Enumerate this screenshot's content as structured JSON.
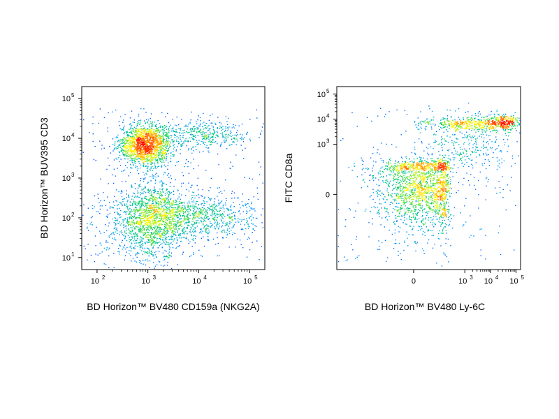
{
  "chart_data": [
    {
      "type": "scatter",
      "style": "flow cytometry pseudocolor density dot plot",
      "xlabel": "BD Horizon™ BV480 CD159a (NKG2A)",
      "ylabel": "BD Horizon™ BUV395 CD3",
      "xscale": "log",
      "yscale": "log",
      "xlim": [
        50,
        200000
      ],
      "ylim": [
        5,
        200000
      ],
      "xticks": [
        {
          "value": 100,
          "base": "10",
          "exp": "2"
        },
        {
          "value": 1000,
          "base": "10",
          "exp": "3"
        },
        {
          "value": 10000,
          "base": "10",
          "exp": "4"
        },
        {
          "value": 100000,
          "base": "10",
          "exp": "5"
        }
      ],
      "yticks": [
        {
          "value": 10,
          "base": "10",
          "exp": "1"
        },
        {
          "value": 100,
          "base": "10",
          "exp": "2"
        },
        {
          "value": 1000,
          "base": "10",
          "exp": "3"
        },
        {
          "value": 10000,
          "base": "10",
          "exp": "4"
        },
        {
          "value": 100000,
          "base": "10",
          "exp": "5"
        }
      ],
      "populations": [
        {
          "x": 900,
          "y": 7000,
          "count": 1700,
          "sx": 0.13,
          "sy": 0.13
        },
        {
          "x": 13000,
          "y": 13000,
          "count": 380,
          "sx": 0.22,
          "sy": 0.09
        },
        {
          "x": 1300,
          "y": 110,
          "count": 1100,
          "sx": 0.17,
          "sy": 0.22
        },
        {
          "x": 8000,
          "y": 110,
          "count": 900,
          "sx": 0.32,
          "sy": 0.14
        },
        {
          "x": 600,
          "y": 45,
          "count": 450,
          "sx": 0.22,
          "sy": 0.28
        }
      ],
      "grid": false,
      "colormap": [
        "#0000ff",
        "#00a0ff",
        "#00d060",
        "#ffff00",
        "#ff8000",
        "#ff0000"
      ]
    },
    {
      "type": "scatter",
      "style": "flow cytometry pseudocolor density dot plot",
      "xlabel": "BD Horizon™ BV480 Ly-6C",
      "ylabel": "FITC CD8a",
      "xscale": "biexponential",
      "yscale": "biexponential",
      "xlim": [
        -300,
        150000
      ],
      "ylim": [
        -300,
        200000
      ],
      "xticks": [
        {
          "value": 0,
          "base": "0",
          "exp": ""
        },
        {
          "value": 1000,
          "base": "10",
          "exp": "3"
        },
        {
          "value": 10000,
          "base": "10",
          "exp": "4"
        },
        {
          "value": 100000,
          "base": "10",
          "exp": "5"
        }
      ],
      "yticks": [
        {
          "value": 0,
          "base": "0",
          "exp": ""
        },
        {
          "value": 1000,
          "base": "10",
          "exp": "3"
        },
        {
          "value": 10000,
          "base": "10",
          "exp": "4"
        },
        {
          "value": 100000,
          "base": "10",
          "exp": "5"
        }
      ],
      "populations": [
        {
          "x": 30,
          "y": 40,
          "count": 1900,
          "sx": 0.09,
          "sy": 0.09
        },
        {
          "x": 1500,
          "y": 7000,
          "count": 380,
          "sx": 0.45,
          "sy": 0.07
        },
        {
          "x": 30000,
          "y": 7500,
          "count": 300,
          "sx": 0.16,
          "sy": 0.07
        },
        {
          "x": 1500,
          "y": 900,
          "count": 350,
          "sx": 0.5,
          "sy": 0.35
        }
      ],
      "grid": false,
      "colormap": [
        "#0000ff",
        "#00a0ff",
        "#00d060",
        "#ffff00",
        "#ff8000",
        "#ff0000"
      ]
    }
  ]
}
